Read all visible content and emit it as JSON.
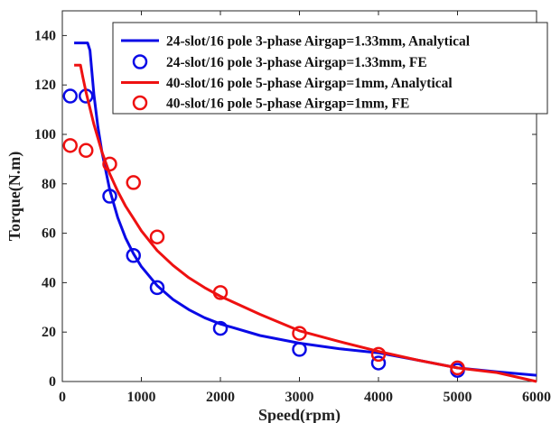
{
  "chart_data": {
    "type": "line",
    "title": "",
    "xlabel": "Speed(rpm)",
    "ylabel": "Torque(N.m)",
    "xlim": [
      0,
      6000
    ],
    "ylim": [
      0,
      150
    ],
    "xticks": [
      0,
      1000,
      2000,
      3000,
      4000,
      5000,
      6000
    ],
    "yticks": [
      0,
      20,
      40,
      60,
      80,
      100,
      120,
      140
    ],
    "grid": false,
    "legend_position": "top-right",
    "colors": {
      "blue": "#0a0ae6",
      "red": "#ee1111"
    },
    "series": [
      {
        "name": "24-slot/16 pole 3-phase Airgap=1.33mm, Analytical",
        "kind": "line",
        "color": "#0a0ae6",
        "x": [
          150,
          320,
          350,
          400,
          450,
          500,
          600,
          700,
          800,
          900,
          1000,
          1200,
          1400,
          1600,
          1800,
          2000,
          2500,
          3000,
          3500,
          4000,
          4500,
          5000,
          5500,
          6000
        ],
        "y": [
          137,
          137,
          134,
          116,
          103,
          93,
          77.5,
          66.4,
          58.1,
          51.7,
          46.5,
          38.8,
          33.2,
          29.1,
          25.8,
          23.3,
          18.6,
          15.5,
          13.3,
          11.6,
          8.6,
          5.5,
          3.9,
          2.5
        ]
      },
      {
        "name": "24-slot/16 pole 3-phase Airgap=1.33mm, FE",
        "kind": "marker",
        "color": "#0a0ae6",
        "x": [
          100,
          300,
          600,
          900,
          1200,
          2000,
          3000,
          4000,
          5000
        ],
        "y": [
          115.5,
          115.5,
          75,
          51,
          38,
          21.5,
          13,
          7.5,
          4.5
        ]
      },
      {
        "name": "40-slot/16 pole 5-phase Airgap=1mm, Analytical",
        "kind": "line",
        "color": "#ee1111",
        "x": [
          150,
          230,
          260,
          300,
          400,
          500,
          600,
          700,
          800,
          900,
          1000,
          1200,
          1400,
          1600,
          1800,
          2000,
          2500,
          3000,
          3500,
          4000,
          4500,
          5000,
          5500,
          6000
        ],
        "y": [
          128,
          128,
          123,
          117,
          104,
          93,
          84,
          77,
          71,
          66,
          61,
          53,
          47,
          42,
          38,
          34.5,
          27.2,
          20.5,
          16.2,
          12.2,
          8.6,
          5.5,
          3.6,
          0
        ]
      },
      {
        "name": "40-slot/16 pole 5-phase Airgap=1mm, FE",
        "kind": "marker",
        "color": "#ee1111",
        "x": [
          100,
          300,
          600,
          900,
          1200,
          2000,
          3000,
          4000,
          5000
        ],
        "y": [
          95.5,
          93.5,
          88,
          80.5,
          58.5,
          36,
          19.5,
          11,
          5.5
        ]
      }
    ]
  }
}
